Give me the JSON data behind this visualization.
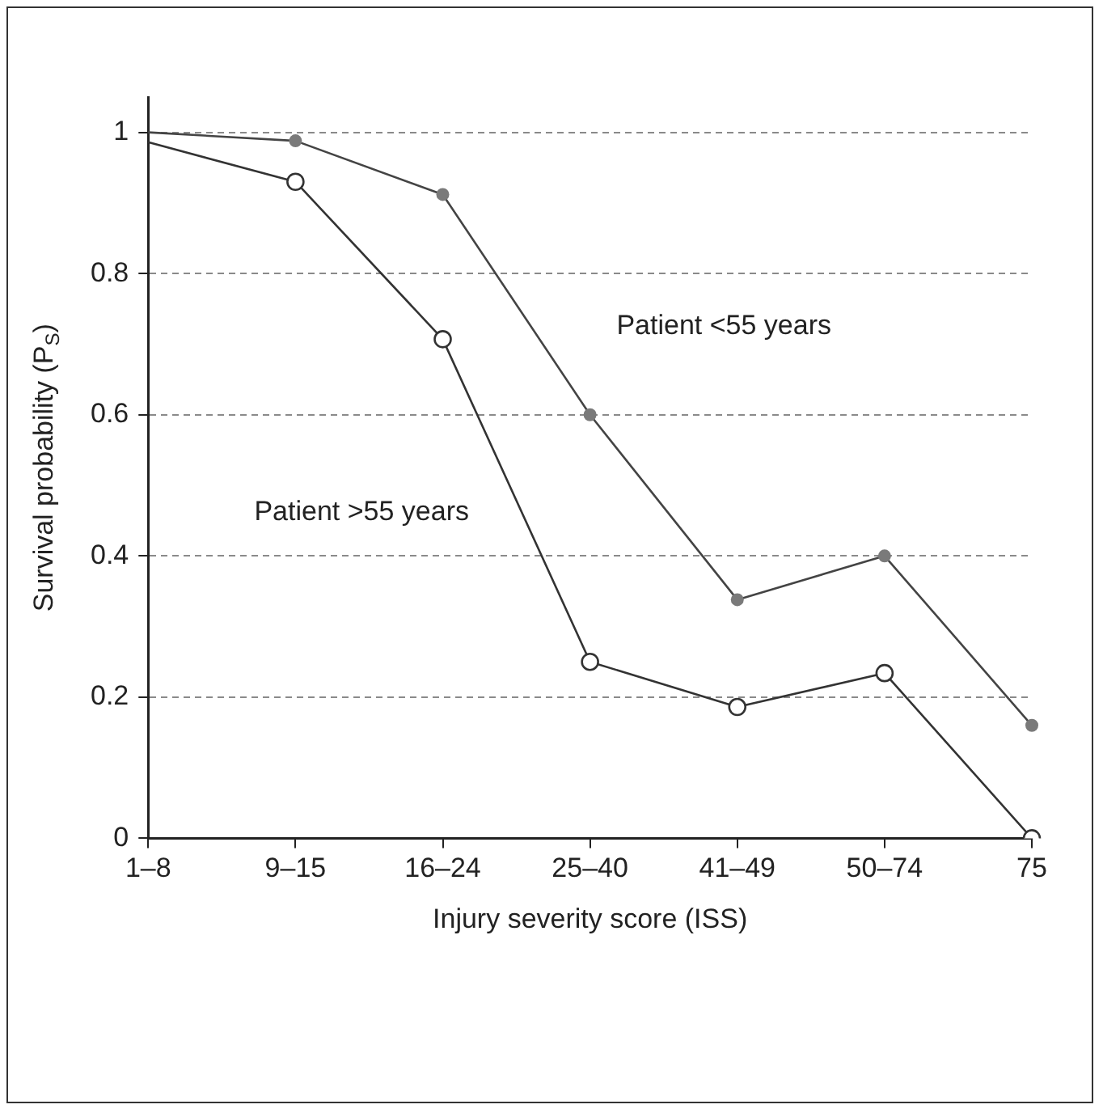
{
  "chart_data": {
    "type": "line",
    "xlabel": "Injury severity score (ISS)",
    "ylabel": "Survival probability (P$_{S}$)",
    "categories": [
      "1–8",
      "9–15",
      "16–24",
      "25–40",
      "41–49",
      "50–74",
      "75"
    ],
    "series": [
      {
        "name": "Patient <55 years",
        "color": "#7a7a7a",
        "values": [
          1.0,
          0.988,
          0.912,
          0.6,
          0.338,
          0.4,
          0.16
        ]
      },
      {
        "name": "Patient >55 years",
        "color": "#333333",
        "values": [
          0.986,
          0.93,
          0.707,
          0.25,
          0.186,
          0.234,
          0.0
        ]
      }
    ],
    "ylim": [
      0,
      1.05
    ],
    "yticks": [
      0,
      0.2,
      0.4,
      0.6,
      0.8,
      1
    ],
    "grid": "y",
    "legend": false,
    "marker": "circle",
    "line_style": "solid"
  }
}
